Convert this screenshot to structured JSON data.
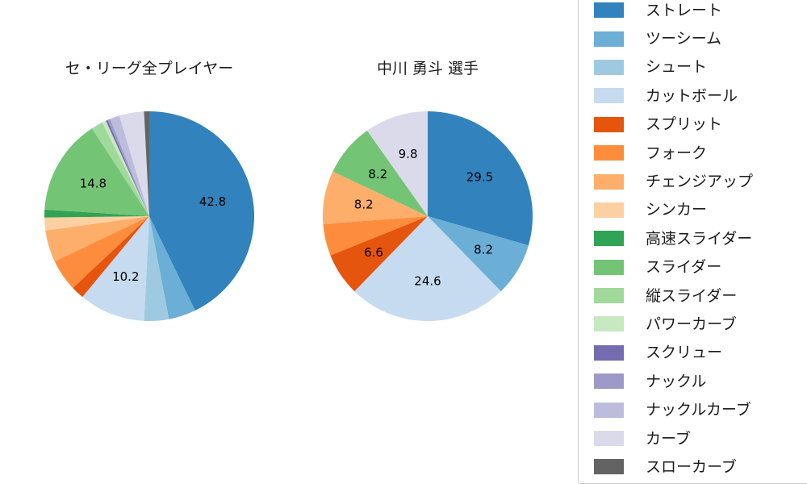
{
  "page": {
    "background_color": "#ffffff",
    "text_color": "#1a1a1a"
  },
  "chart_data": [
    {
      "type": "pie",
      "title": "セ・リーグ全プレイヤー",
      "unit": "%",
      "start_angle": "top",
      "direction": "clockwise",
      "label_rule": "percent labels shown only for slices >= 5%",
      "slices": [
        {
          "name": "ストレート",
          "value": 42.8,
          "color": "#3182bd",
          "label": "42.8"
        },
        {
          "name": "ツーシーム",
          "value": 4.2,
          "color": "#6baed6"
        },
        {
          "name": "シュート",
          "value": 3.8,
          "color": "#9ecae1"
        },
        {
          "name": "カットボール",
          "value": 10.2,
          "color": "#c6dbef",
          "label": "10.2"
        },
        {
          "name": "スプリット",
          "value": 2.0,
          "color": "#e6550d"
        },
        {
          "name": "フォーク",
          "value": 4.9,
          "color": "#fd8d3c"
        },
        {
          "name": "チェンジアップ",
          "value": 4.9,
          "color": "#fdae6b"
        },
        {
          "name": "シンカー",
          "value": 2.0,
          "color": "#fdd0a2"
        },
        {
          "name": "高速スライダー",
          "value": 1.2,
          "color": "#31a354"
        },
        {
          "name": "スライダー",
          "value": 14.8,
          "color": "#74c476",
          "label": "14.8"
        },
        {
          "name": "縦スライダー",
          "value": 1.8,
          "color": "#a1d99b"
        },
        {
          "name": "パワーカーブ",
          "value": 0.6,
          "color": "#c7e9c0"
        },
        {
          "name": "スクリュー",
          "value": 0.3,
          "color": "#756bb1"
        },
        {
          "name": "ナックル",
          "value": 0.4,
          "color": "#9e9ac8"
        },
        {
          "name": "ナックルカーブ",
          "value": 1.5,
          "color": "#bcbddc"
        },
        {
          "name": "カーブ",
          "value": 3.8,
          "color": "#dadaeb"
        },
        {
          "name": "スローカーブ",
          "value": 0.8,
          "color": "#636363"
        }
      ]
    },
    {
      "type": "pie",
      "title": "中川 勇斗  選手",
      "unit": "%",
      "start_angle": "top",
      "direction": "clockwise",
      "label_rule": "percent labels shown only for slices >= 5%",
      "slices": [
        {
          "name": "ストレート",
          "value": 29.5,
          "color": "#3182bd",
          "label": "29.5"
        },
        {
          "name": "ツーシーム",
          "value": 8.2,
          "color": "#6baed6",
          "label": "8.2"
        },
        {
          "name": "カットボール",
          "value": 24.6,
          "color": "#c6dbef",
          "label": "24.6"
        },
        {
          "name": "スプリット",
          "value": 6.6,
          "color": "#e6550d",
          "label": "6.6"
        },
        {
          "name": "フォーク",
          "value": 4.9,
          "color": "#fd8d3c"
        },
        {
          "name": "チェンジアップ",
          "value": 8.2,
          "color": "#fdae6b",
          "label": "8.2"
        },
        {
          "name": "スライダー",
          "value": 8.2,
          "color": "#74c476",
          "label": "8.2"
        },
        {
          "name": "カーブ",
          "value": 9.8,
          "color": "#dadaeb",
          "label": "9.8"
        }
      ]
    }
  ],
  "legend": {
    "items": [
      {
        "label": "ストレート",
        "color": "#3182bd"
      },
      {
        "label": "ツーシーム",
        "color": "#6baed6"
      },
      {
        "label": "シュート",
        "color": "#9ecae1"
      },
      {
        "label": "カットボール",
        "color": "#c6dbef"
      },
      {
        "label": "スプリット",
        "color": "#e6550d"
      },
      {
        "label": "フォーク",
        "color": "#fd8d3c"
      },
      {
        "label": "チェンジアップ",
        "color": "#fdae6b"
      },
      {
        "label": "シンカー",
        "color": "#fdd0a2"
      },
      {
        "label": "高速スライダー",
        "color": "#31a354"
      },
      {
        "label": "スライダー",
        "color": "#74c476"
      },
      {
        "label": "縦スライダー",
        "color": "#a1d99b"
      },
      {
        "label": "パワーカーブ",
        "color": "#c7e9c0"
      },
      {
        "label": "スクリュー",
        "color": "#756bb1"
      },
      {
        "label": "ナックル",
        "color": "#9e9ac8"
      },
      {
        "label": "ナックルカーブ",
        "color": "#bcbddc"
      },
      {
        "label": "カーブ",
        "color": "#dadaeb"
      },
      {
        "label": "スローカーブ",
        "color": "#636363"
      }
    ]
  }
}
